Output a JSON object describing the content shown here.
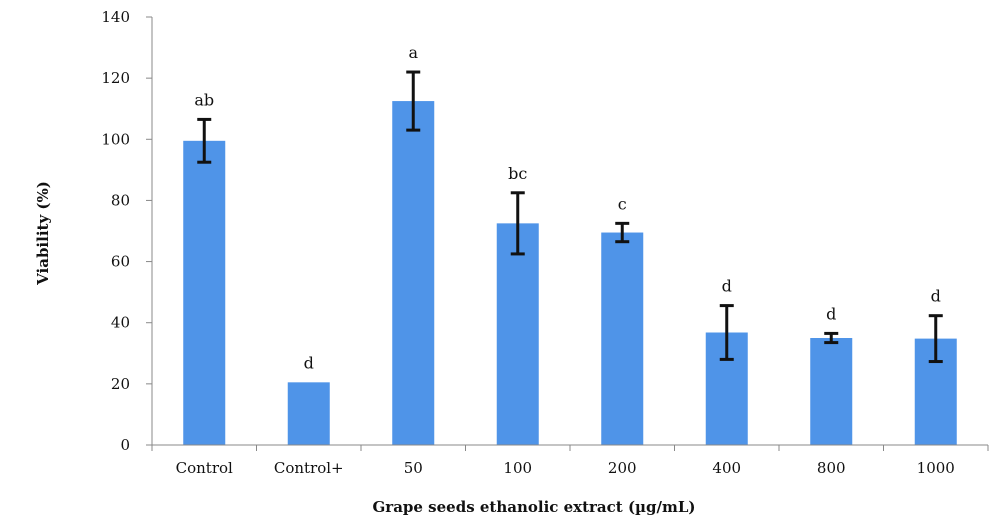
{
  "chart_data": {
    "type": "bar",
    "title": "",
    "xlabel": "Grape seeds ethanolic extract (µg/mL)",
    "ylabel": "Viability (%)",
    "ylim": [
      0,
      140
    ],
    "yticks": [
      0,
      20,
      40,
      60,
      80,
      100,
      120,
      140
    ],
    "categories": [
      "Control",
      "Control+",
      "50",
      "100",
      "200",
      "400",
      "800",
      "1000"
    ],
    "series": [
      {
        "values": [
          99.5,
          20.5,
          112.5,
          72.5,
          69.5,
          36.8,
          35.0,
          34.8
        ],
        "error": [
          7.0,
          0,
          9.5,
          10.0,
          3.0,
          8.8,
          1.5,
          7.5
        ],
        "color": "#4f94e8"
      }
    ],
    "annotations": [
      "ab",
      "d",
      "a",
      "bc",
      "c",
      "d",
      "d",
      "d"
    ],
    "grid": false,
    "legend": "none"
  }
}
